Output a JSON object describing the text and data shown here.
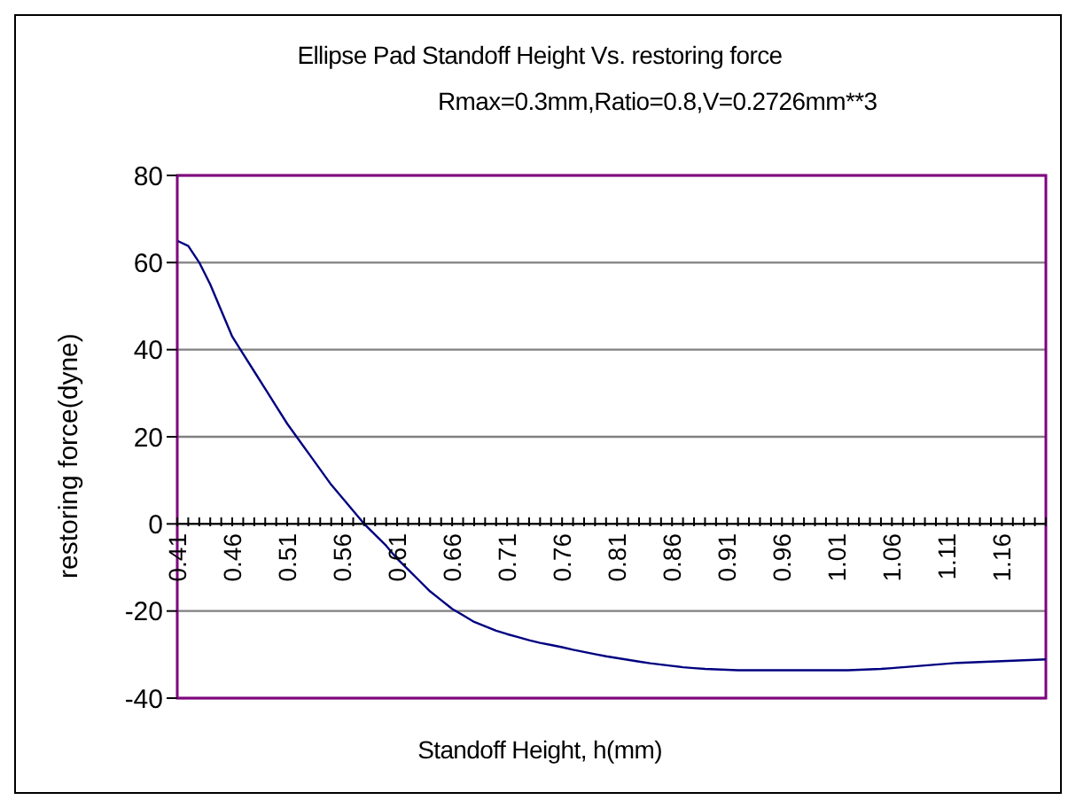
{
  "chart_data": {
    "type": "line",
    "title": "Ellipse Pad Standoff Height Vs. restoring force",
    "subtitle": "Rmax=0.3mm,Ratio=0.8,V=0.2726mm**3",
    "xlabel": "Standoff Height, h(mm)",
    "ylabel": "restoring force(dyne)",
    "categories": [
      "0.41",
      null,
      null,
      null,
      null,
      "0.46",
      null,
      null,
      null,
      null,
      "0.51",
      null,
      null,
      null,
      null,
      "0.56",
      null,
      null,
      null,
      null,
      "0.61",
      null,
      null,
      null,
      null,
      "0.66",
      null,
      null,
      null,
      null,
      "0.71",
      null,
      null,
      null,
      null,
      "0.76",
      null,
      null,
      null,
      null,
      "0.81",
      null,
      null,
      null,
      null,
      "0.86",
      null,
      null,
      null,
      null,
      "0.91",
      null,
      null,
      null,
      null,
      "0.96",
      null,
      null,
      null,
      null,
      "1.01",
      null,
      null,
      null,
      null,
      "1.06",
      null,
      null,
      null,
      null,
      "1.11",
      null,
      null,
      null,
      null,
      "1.16",
      null,
      null,
      null,
      null
    ],
    "series": [
      {
        "color": "#000080",
        "values": [
          65,
          63.8,
          60,
          55,
          49,
          43,
          39,
          35,
          31,
          27,
          23,
          19.5,
          16,
          12.5,
          9,
          6,
          3,
          0,
          -2.5,
          -5,
          -8,
          -10.5,
          -13,
          -15.5,
          -17.5,
          -19.5,
          -21,
          -22.5,
          -23.5,
          -24.5,
          -25.3,
          -26,
          -26.7,
          -27.3,
          -27.8,
          -28.3,
          -28.9,
          -29.4,
          -29.9,
          -30.4,
          -30.8,
          -31.2,
          -31.6,
          -32,
          -32.3,
          -32.6,
          -32.9,
          -33.1,
          -33.3,
          -33.4,
          -33.5,
          -33.6,
          -33.6,
          -33.6,
          -33.6,
          -33.6,
          -33.6,
          -33.6,
          -33.6,
          -33.6,
          -33.6,
          -33.6,
          -33.5,
          -33.4,
          -33.3,
          -33.1,
          -32.9,
          -32.7,
          -32.5,
          -32.3,
          -32.1,
          -31.9,
          -31.8,
          -31.7,
          -31.6,
          -31.5,
          -31.4,
          -31.3,
          -31.2,
          -31.1
        ]
      }
    ],
    "ylim": [
      -40,
      80
    ],
    "yticks": [
      -40,
      -20,
      0,
      20,
      40,
      60,
      80
    ],
    "grid": "y"
  }
}
